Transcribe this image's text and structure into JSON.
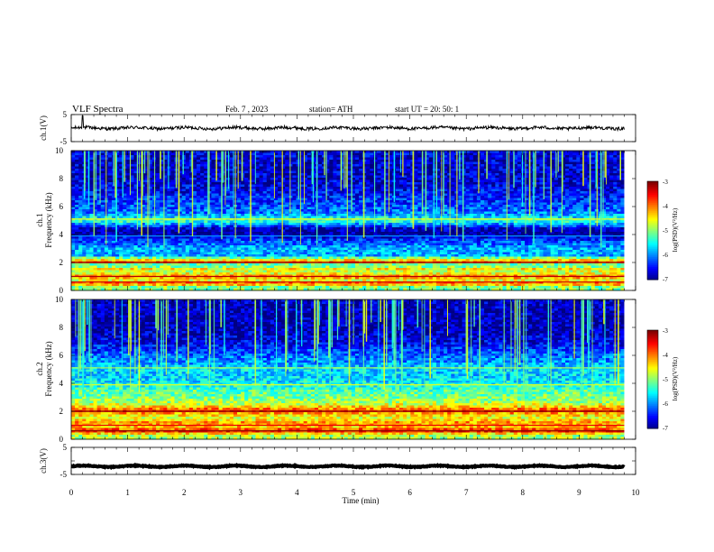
{
  "header": {
    "title": "VLF Spectra",
    "date": "Feb. 7 , 2023",
    "station": "station= ATH",
    "start": "start UT = 20: 50: 1"
  },
  "chart_data": [
    {
      "type": "line",
      "ylabel": "ch.1(V)",
      "ylim": [
        -5,
        5
      ],
      "yticks": [
        "5",
        "-5"
      ],
      "xlim": [
        0,
        10
      ],
      "series": [
        {
          "baseline": 0,
          "jitter": 0.6,
          "spike_at": 0.2,
          "spike_value": 4.5
        }
      ]
    },
    {
      "type": "heatmap",
      "ylabel1": "ch.1",
      "ylabel2": "Frequency (kHz)",
      "ylim": [
        0,
        10
      ],
      "yticks": [
        "0",
        "2",
        "4",
        "6",
        "8",
        "10"
      ],
      "xlim": [
        0,
        9.8
      ],
      "color_min": -7,
      "color_max": -3,
      "colorbar_ticks": [
        "-3",
        "-4",
        "-5",
        "-6",
        "-7"
      ],
      "colorbar_label": "log(PSD)(V²/Hz)",
      "bands": [
        {
          "f": 0.3,
          "level": -5.0
        },
        {
          "f": 0.5,
          "level": -3.6
        },
        {
          "f": 0.7,
          "level": -4.6
        },
        {
          "f": 1.0,
          "level": -4.0
        },
        {
          "f": 1.3,
          "level": -4.8
        },
        {
          "f": 1.6,
          "level": -4.4
        },
        {
          "f": 1.8,
          "level": -5.6
        },
        {
          "f": 2.0,
          "level": -3.8
        },
        {
          "f": 2.2,
          "level": -4.5
        },
        {
          "f": 2.5,
          "level": -5.8
        },
        {
          "f": 3.0,
          "level": -5.8
        },
        {
          "f": 3.7,
          "level": -6.4
        },
        {
          "f": 4.0,
          "level": -6.9
        },
        {
          "f": 4.4,
          "level": -6.8
        },
        {
          "f": 5.0,
          "level": -5.2
        },
        {
          "f": 5.5,
          "level": -6.0
        },
        {
          "f": 6.0,
          "level": -6.2
        },
        {
          "f": 7.0,
          "level": -6.5
        },
        {
          "f": 8.0,
          "level": -6.7
        },
        {
          "f": 9.0,
          "level": -6.7
        },
        {
          "f": 10.0,
          "level": -6.6
        }
      ]
    },
    {
      "type": "heatmap",
      "ylabel1": "ch.2",
      "ylabel2": "Frequency (kHz)",
      "ylim": [
        0,
        10
      ],
      "yticks": [
        "0",
        "2",
        "4",
        "6",
        "8",
        "10"
      ],
      "xlim": [
        0,
        9.8
      ],
      "color_min": -7,
      "color_max": -3,
      "colorbar_ticks": [
        "-3",
        "-4",
        "-5",
        "-6",
        "-7"
      ],
      "colorbar_label": "log(PSD)(V²/Hz)",
      "bands": [
        {
          "f": 0.3,
          "level": -4.8
        },
        {
          "f": 0.6,
          "level": -3.5
        },
        {
          "f": 0.9,
          "level": -4.3
        },
        {
          "f": 1.2,
          "level": -4.1
        },
        {
          "f": 1.5,
          "level": -4.6
        },
        {
          "f": 1.8,
          "level": -4.3
        },
        {
          "f": 2.0,
          "level": -3.6
        },
        {
          "f": 2.3,
          "level": -4.3
        },
        {
          "f": 2.6,
          "level": -4.8
        },
        {
          "f": 3.0,
          "level": -5.0
        },
        {
          "f": 3.5,
          "level": -5.2
        },
        {
          "f": 4.0,
          "level": -5.5
        },
        {
          "f": 4.5,
          "level": -5.7
        },
        {
          "f": 5.0,
          "level": -5.6
        },
        {
          "f": 5.5,
          "level": -5.9
        },
        {
          "f": 6.0,
          "level": -6.1
        },
        {
          "f": 7.0,
          "level": -6.6
        },
        {
          "f": 8.0,
          "level": -6.8
        },
        {
          "f": 9.0,
          "level": -6.8
        },
        {
          "f": 10.0,
          "level": -6.7
        }
      ]
    },
    {
      "type": "line",
      "ylabel": "ch.3(V)",
      "ylim": [
        -5,
        5
      ],
      "yticks": [
        "5",
        "0",
        "-5"
      ],
      "xlim": [
        0,
        10
      ],
      "xlabel": "Time (min)",
      "xticks": [
        "0",
        "1",
        "2",
        "3",
        "4",
        "5",
        "6",
        "7",
        "8",
        "9",
        "10"
      ],
      "series": [
        {
          "baseline": -2,
          "jitter": 0.15
        }
      ]
    }
  ]
}
